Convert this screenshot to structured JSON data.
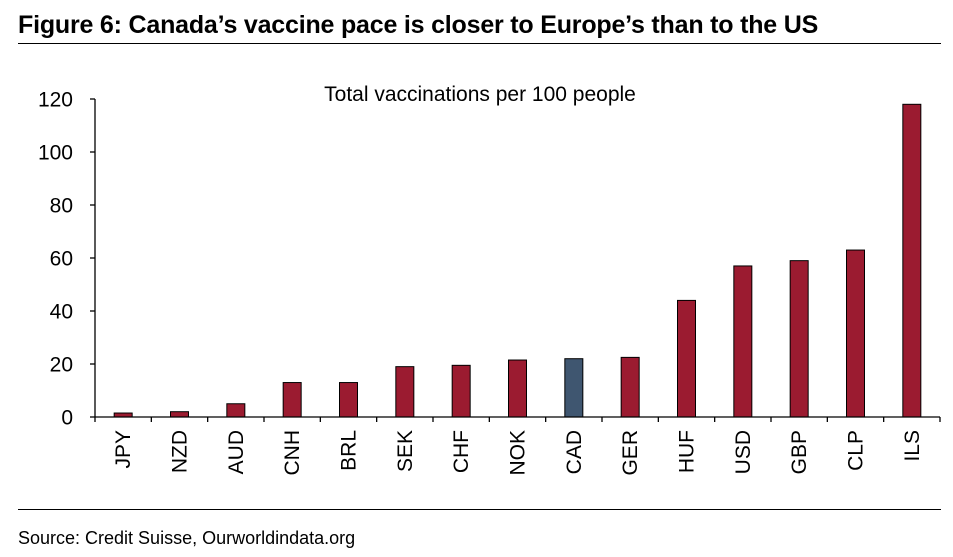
{
  "figure": {
    "title": "Figure 6: Canada’s vaccine pace is closer to Europe’s than to the US",
    "source": "Source: Credit Suisse, Ourworldindata.org"
  },
  "colors": {
    "default_bar": "#9B1B30",
    "highlight_bar": "#3F5670",
    "bar_edge": "#000000",
    "axis": "#000000"
  },
  "chart_data": {
    "type": "bar",
    "title": "Total vaccinations per 100 people",
    "xlabel": "",
    "ylabel": "",
    "categories": [
      "JPY",
      "NZD",
      "AUD",
      "CNH",
      "BRL",
      "SEK",
      "CHF",
      "NOK",
      "CAD",
      "GER",
      "HUF",
      "USD",
      "GBP",
      "CLP",
      "ILS"
    ],
    "values": [
      1.5,
      2,
      5,
      13,
      13,
      19,
      19.5,
      21.5,
      22,
      22.5,
      44,
      57,
      59,
      63,
      118
    ],
    "highlight": [
      "CAD"
    ],
    "ylim": [
      0,
      120
    ],
    "yticks": [
      0,
      20,
      40,
      60,
      80,
      100,
      120
    ],
    "grid": false,
    "legend": "none"
  }
}
